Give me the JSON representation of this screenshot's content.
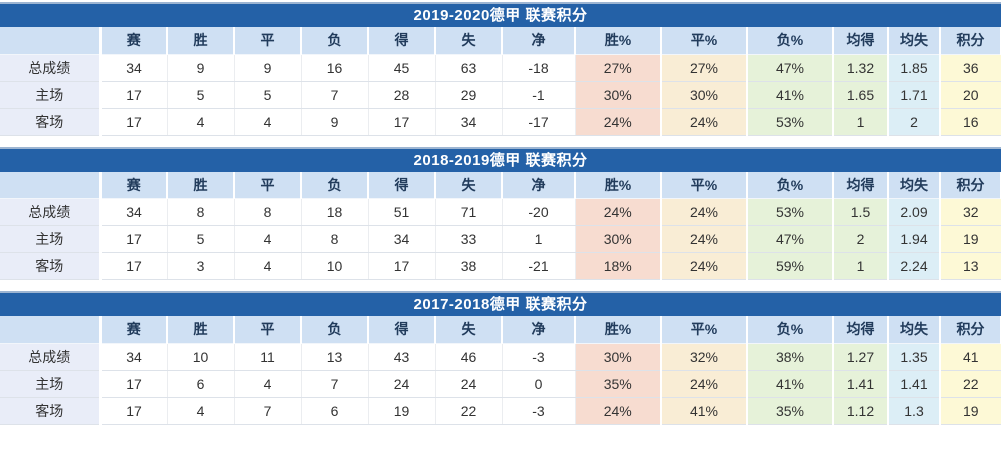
{
  "columns": {
    "corner": "",
    "labels": [
      "赛",
      "胜",
      "平",
      "负",
      "得",
      "失",
      "净",
      "胜%",
      "平%",
      "负%",
      "均得",
      "均失",
      "积分"
    ]
  },
  "tables": [
    {
      "title": "2019-2020德甲 联赛积分",
      "rows": [
        {
          "label": "总成绩",
          "values": [
            "34",
            "9",
            "9",
            "16",
            "45",
            "63",
            "-18",
            "27%",
            "27%",
            "47%",
            "1.32",
            "1.85",
            "36"
          ]
        },
        {
          "label": "主场",
          "values": [
            "17",
            "5",
            "5",
            "7",
            "28",
            "29",
            "-1",
            "30%",
            "30%",
            "41%",
            "1.65",
            "1.71",
            "20"
          ]
        },
        {
          "label": "客场",
          "values": [
            "17",
            "4",
            "4",
            "9",
            "17",
            "34",
            "-17",
            "24%",
            "24%",
            "53%",
            "1",
            "2",
            "16"
          ]
        }
      ]
    },
    {
      "title": "2018-2019德甲 联赛积分",
      "rows": [
        {
          "label": "总成绩",
          "values": [
            "34",
            "8",
            "8",
            "18",
            "51",
            "71",
            "-20",
            "24%",
            "24%",
            "53%",
            "1.5",
            "2.09",
            "32"
          ]
        },
        {
          "label": "主场",
          "values": [
            "17",
            "5",
            "4",
            "8",
            "34",
            "33",
            "1",
            "30%",
            "24%",
            "47%",
            "2",
            "1.94",
            "19"
          ]
        },
        {
          "label": "客场",
          "values": [
            "17",
            "3",
            "4",
            "10",
            "17",
            "38",
            "-21",
            "18%",
            "24%",
            "59%",
            "1",
            "2.24",
            "13"
          ]
        }
      ]
    },
    {
      "title": "2017-2018德甲 联赛积分",
      "rows": [
        {
          "label": "总成绩",
          "values": [
            "34",
            "10",
            "11",
            "13",
            "43",
            "46",
            "-3",
            "30%",
            "32%",
            "38%",
            "1.27",
            "1.35",
            "41"
          ]
        },
        {
          "label": "主场",
          "values": [
            "17",
            "6",
            "4",
            "7",
            "24",
            "24",
            "0",
            "35%",
            "24%",
            "41%",
            "1.41",
            "1.41",
            "22"
          ]
        },
        {
          "label": "客场",
          "values": [
            "17",
            "4",
            "7",
            "6",
            "19",
            "22",
            "-3",
            "24%",
            "41%",
            "35%",
            "1.12",
            "1.3",
            "19"
          ]
        }
      ]
    }
  ],
  "colors": {
    "title_bar": "#2461a7",
    "title_bar_top_border": "#9db5d2",
    "header_row": "#cfe0f3",
    "label_column": "#e9edf8",
    "win_pct_cell": "#f7dcd0",
    "draw_pct_cell": "#f9edd5",
    "loss_pct_cell": "#e6f2d9",
    "avg_goals_for_cell": "#e6f2d9",
    "avg_goals_against_cell": "#dceef6",
    "points_cell": "#fdf9d6"
  }
}
